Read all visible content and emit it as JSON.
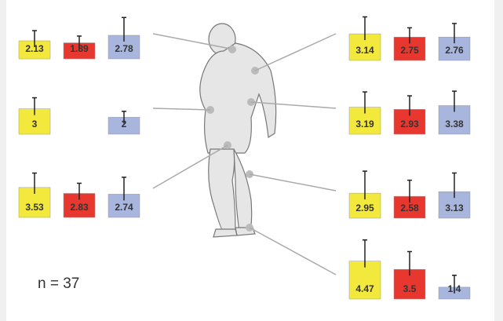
{
  "chart_data": [
    {
      "type": "bar",
      "categories": [
        null,
        null,
        null
      ],
      "values": [
        2.13,
        1.89,
        2.78
      ],
      "errors": [
        1.2,
        0.8,
        2.1
      ],
      "colors": [
        "#f3e83c",
        "#e8372f",
        "#a8b5dd"
      ]
    },
    {
      "type": "bar",
      "categories": [
        null,
        null,
        null
      ],
      "values": [
        3,
        null,
        2
      ],
      "errors": [
        1.3,
        null,
        0.7
      ],
      "colors": [
        "#f3e83c",
        "#e8372f",
        "#a8b5dd"
      ]
    },
    {
      "type": "bar",
      "categories": [
        null,
        null,
        null
      ],
      "values": [
        3.53,
        2.83,
        2.74
      ],
      "errors": [
        1.7,
        1.2,
        2.0
      ],
      "colors": [
        "#f3e83c",
        "#e8372f",
        "#a8b5dd"
      ]
    },
    {
      "type": "bar",
      "categories": [
        null,
        null,
        null
      ],
      "values": [
        3.14,
        2.75,
        2.76
      ],
      "errors": [
        2.0,
        1.1,
        1.6
      ],
      "colors": [
        "#f3e83c",
        "#e8372f",
        "#a8b5dd"
      ]
    },
    {
      "type": "bar",
      "categories": [
        null,
        null,
        null
      ],
      "values": [
        3.19,
        2.93,
        3.38
      ],
      "errors": [
        1.8,
        1.6,
        1.7
      ],
      "colors": [
        "#f3e83c",
        "#e8372f",
        "#a8b5dd"
      ]
    },
    {
      "type": "bar",
      "categories": [
        null,
        null,
        null
      ],
      "values": [
        2.95,
        2.58,
        3.13
      ],
      "errors": [
        2.6,
        1.9,
        2.2
      ],
      "colors": [
        "#f3e83c",
        "#e8372f",
        "#a8b5dd"
      ]
    },
    {
      "type": "bar",
      "categories": [
        null,
        null,
        null
      ],
      "values": [
        4.47,
        3.5,
        1.4
      ],
      "errors": [
        2.5,
        2.1,
        1.4
      ],
      "colors": [
        "#f3e83c",
        "#e8372f",
        "#a8b5dd"
      ]
    }
  ],
  "annotation": "n = 37"
}
